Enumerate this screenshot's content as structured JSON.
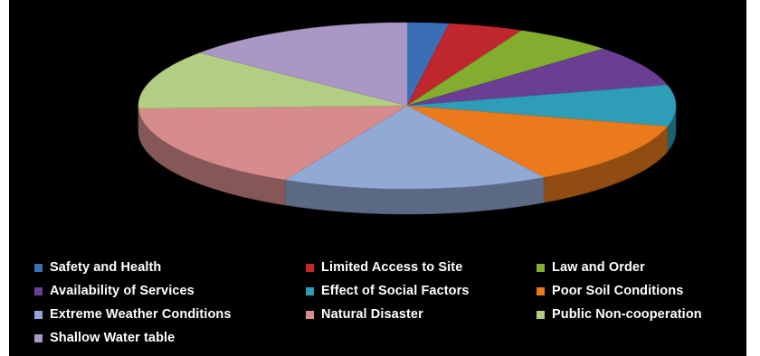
{
  "chart_data": {
    "type": "pie",
    "style": "3d",
    "legend_position": "bottom",
    "categories": [
      "Safety and Health",
      "Limited Access to Site",
      "Law and Order",
      "Availability of Services",
      "Effect of Social Factors",
      "Poor Soil Conditions",
      "Extreme Weather Conditions",
      "Natural Disaster",
      "Public Non-cooperation",
      "Shallow Water table"
    ],
    "values": [
      2.5,
      4.5,
      6,
      8,
      8,
      12.5,
      16,
      17,
      11.5,
      14
    ],
    "colors": [
      "#3a6eb5",
      "#c0262d",
      "#82ad2f",
      "#6a3f93",
      "#2d9db8",
      "#ea7a1c",
      "#92a9d6",
      "#d78c8c",
      "#b2ce82",
      "#aa97c5"
    ]
  }
}
